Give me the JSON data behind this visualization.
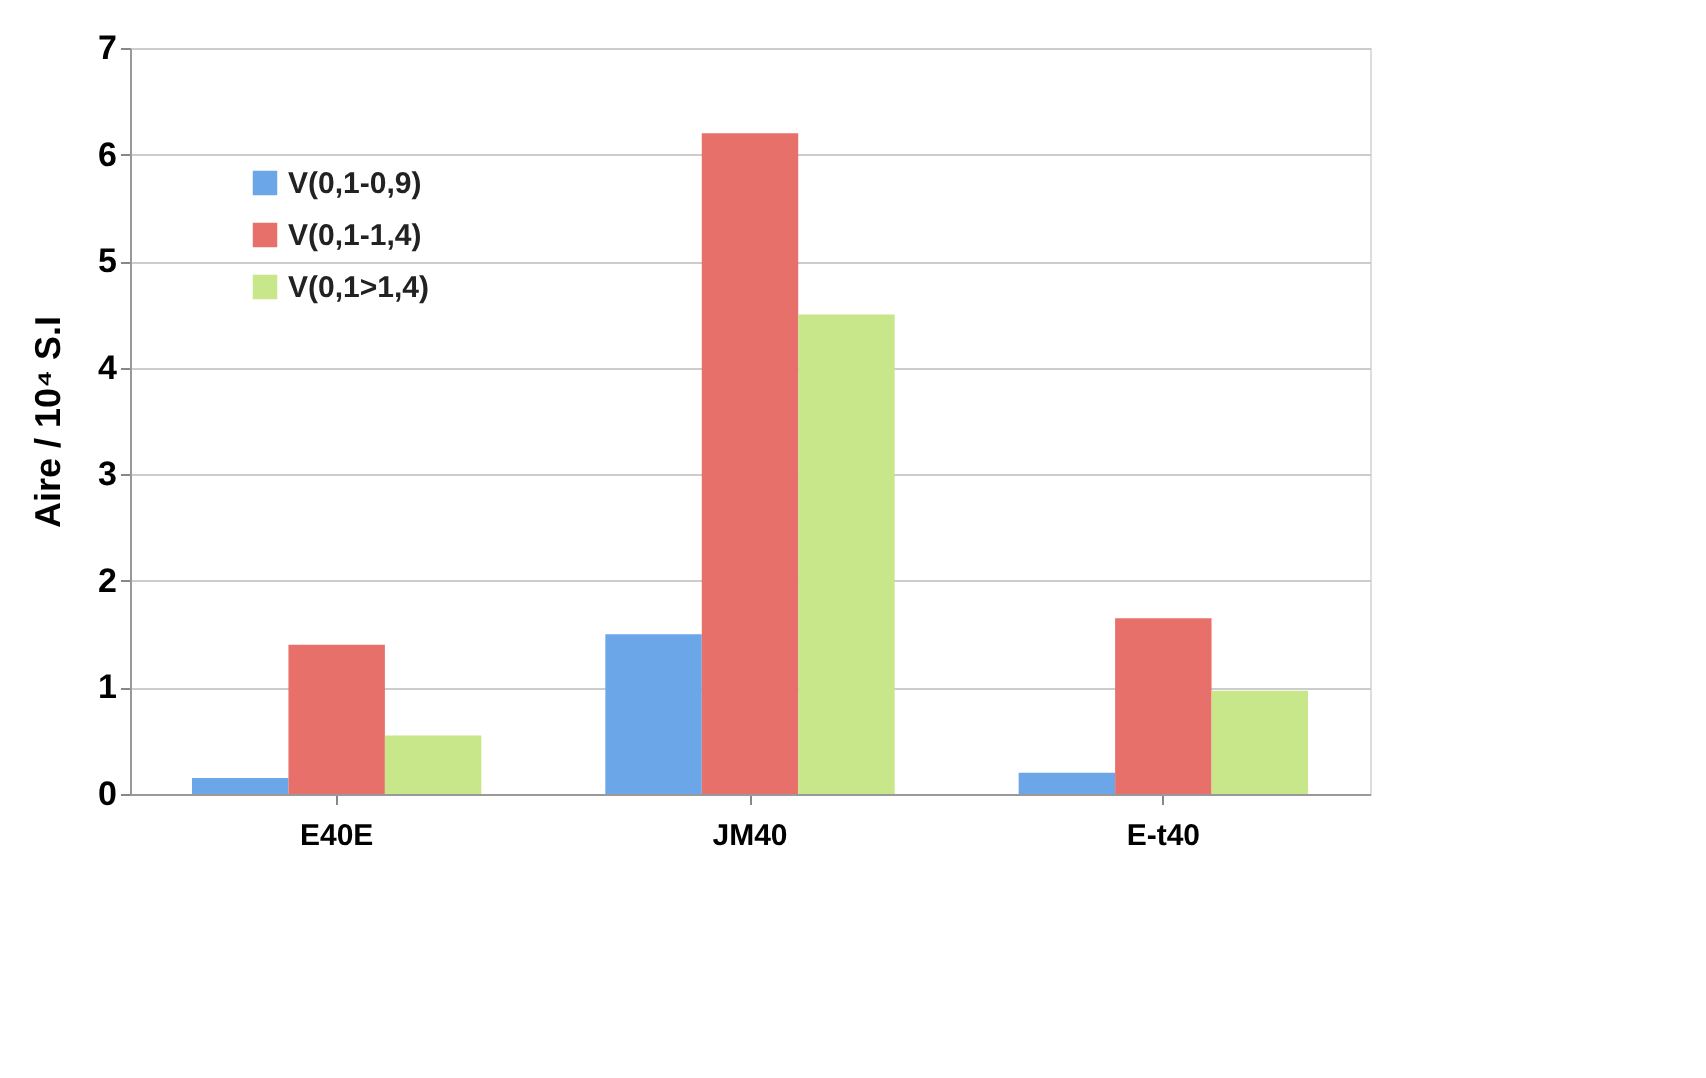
{
  "chart_data": {
    "type": "bar",
    "ylabel": "Aire / 10⁴ S.I",
    "categories": [
      "E40E",
      "JM40",
      "E-t40"
    ],
    "series": [
      {
        "name": "V(0,1-0,9)",
        "color": "#6aa6e8",
        "values": [
          0.15,
          1.5,
          0.2
        ]
      },
      {
        "name": "V(0,1-1,4)",
        "color": "#e8706a",
        "values": [
          1.4,
          6.2,
          1.65
        ]
      },
      {
        "name": "V(0,1>1,4)",
        "color": "#c8e68a",
        "values": [
          0.55,
          4.5,
          0.97
        ]
      }
    ],
    "ylim": [
      0,
      7
    ],
    "yticks": [
      0,
      1,
      2,
      3,
      4,
      5,
      6,
      7
    ],
    "grid": "y",
    "legend": "top left"
  }
}
